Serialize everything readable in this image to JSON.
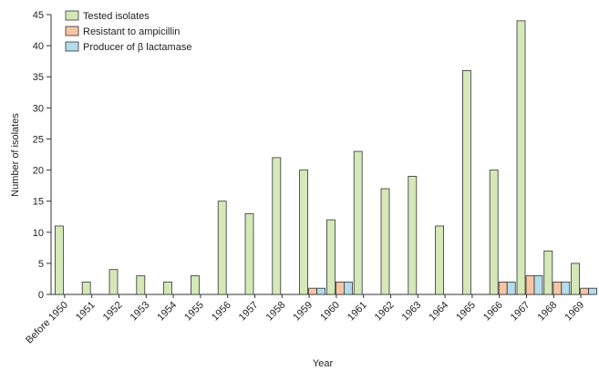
{
  "chart_data": {
    "type": "bar",
    "title": "",
    "xlabel": "Year",
    "ylabel": "Number of isolates",
    "ylim": [
      0,
      45
    ],
    "yticks": [
      0,
      5,
      10,
      15,
      20,
      25,
      30,
      35,
      40,
      45
    ],
    "categories": [
      "Before 1950",
      "1951",
      "1952",
      "1953",
      "1954",
      "1955",
      "1956",
      "1957",
      "1958",
      "1959",
      "1960",
      "1961",
      "1962",
      "1963",
      "1964",
      "1965",
      "1966",
      "1967",
      "1968",
      "1969"
    ],
    "series": [
      {
        "name": "Tested isolates",
        "color": "#d4e8b8",
        "values": [
          11,
          2,
          4,
          3,
          2,
          3,
          15,
          13,
          22,
          20,
          12,
          23,
          17,
          19,
          11,
          36,
          20,
          44,
          7,
          5
        ]
      },
      {
        "name": "Resistant to ampicillin",
        "color": "#f7c4a5",
        "values": [
          0,
          0,
          0,
          0,
          0,
          0,
          0,
          0,
          0,
          1,
          2,
          0,
          0,
          0,
          0,
          0,
          2,
          3,
          2,
          1
        ]
      },
      {
        "name": "Producer of β lactamase",
        "color": "#b4dcea",
        "values": [
          0,
          0,
          0,
          0,
          0,
          0,
          0,
          0,
          0,
          1,
          2,
          0,
          0,
          0,
          0,
          0,
          2,
          3,
          2,
          1
        ]
      }
    ],
    "legend_position": "top-left",
    "grid": false
  }
}
